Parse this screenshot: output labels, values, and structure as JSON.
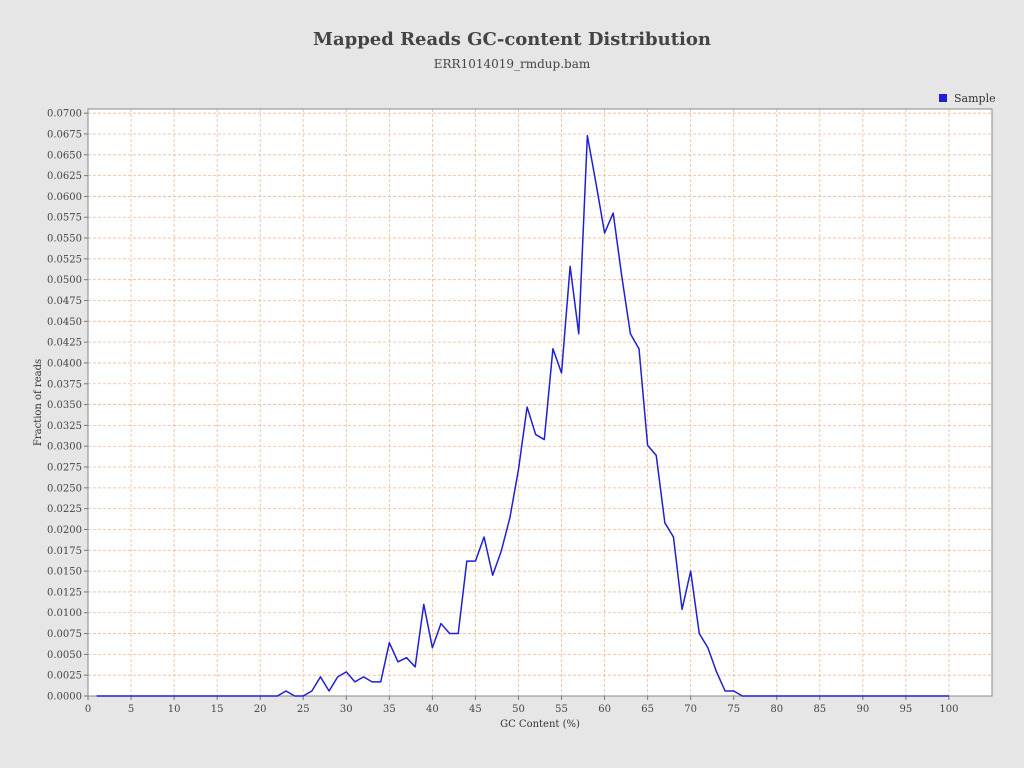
{
  "chart_data": {
    "type": "line",
    "title": "Mapped Reads GC-content Distribution",
    "subtitle": "ERR1014019_rmdup.bam",
    "xlabel": "GC Content (%)",
    "ylabel": "Fraction of reads",
    "xlim": [
      0,
      105
    ],
    "ylim": [
      0,
      0.0705
    ],
    "xticks": [
      0,
      5,
      10,
      15,
      20,
      25,
      30,
      35,
      40,
      45,
      50,
      55,
      60,
      65,
      70,
      75,
      80,
      85,
      90,
      95,
      100
    ],
    "yticks": [
      "0.0000",
      "0.0025",
      "0.0050",
      "0.0075",
      "0.0100",
      "0.0125",
      "0.0150",
      "0.0175",
      "0.0200",
      "0.0225",
      "0.0250",
      "0.0275",
      "0.0300",
      "0.0325",
      "0.0350",
      "0.0375",
      "0.0400",
      "0.0425",
      "0.0450",
      "0.0475",
      "0.0500",
      "0.0525",
      "0.0550",
      "0.0575",
      "0.0600",
      "0.0625",
      "0.0650",
      "0.0675",
      "0.0700"
    ],
    "grid": true,
    "legend_position": "top-right",
    "series": [
      {
        "name": "Sample",
        "color": "#1f1fd6",
        "x": [
          1,
          2,
          3,
          4,
          5,
          6,
          7,
          8,
          9,
          10,
          11,
          12,
          13,
          14,
          15,
          16,
          17,
          18,
          19,
          20,
          21,
          22,
          23,
          24,
          25,
          26,
          27,
          28,
          29,
          30,
          31,
          32,
          33,
          34,
          35,
          36,
          37,
          38,
          39,
          40,
          41,
          42,
          43,
          44,
          45,
          46,
          47,
          48,
          49,
          50,
          51,
          52,
          53,
          54,
          55,
          56,
          57,
          58,
          59,
          60,
          61,
          62,
          63,
          64,
          65,
          66,
          67,
          68,
          69,
          70,
          71,
          72,
          73,
          74,
          75,
          76,
          77,
          78,
          79,
          80,
          81,
          82,
          83,
          84,
          85,
          86,
          87,
          88,
          89,
          90,
          91,
          92,
          93,
          94,
          95,
          96,
          97,
          98,
          99,
          100
        ],
        "y": [
          0,
          0,
          0,
          0,
          0,
          0,
          0,
          0,
          0,
          0,
          0,
          0,
          0,
          0,
          0,
          0,
          0,
          0,
          0,
          0,
          0,
          0,
          0.0006,
          0,
          0,
          0.0006,
          0.0023,
          0.0006,
          0.0023,
          0.0029,
          0.0017,
          0.0023,
          0.0017,
          0.0017,
          0.0064,
          0.0041,
          0.0046,
          0.0035,
          0.011,
          0.0058,
          0.0087,
          0.0075,
          0.0075,
          0.0162,
          0.0162,
          0.0191,
          0.0145,
          0.0174,
          0.0214,
          0.0272,
          0.0347,
          0.0314,
          0.0308,
          0.0417,
          0.0388,
          0.0516,
          0.0435,
          0.0673,
          0.0616,
          0.0556,
          0.058,
          0.0504,
          0.0435,
          0.0417,
          0.0301,
          0.0289,
          0.0208,
          0.0191,
          0.0104,
          0.015,
          0.0075,
          0.0058,
          0.0029,
          0.0006,
          0.0006,
          0,
          0,
          0,
          0,
          0,
          0,
          0,
          0,
          0,
          0,
          0,
          0,
          0,
          0,
          0,
          0,
          0,
          0,
          0,
          0,
          0,
          0,
          0,
          0,
          0
        ]
      }
    ]
  }
}
